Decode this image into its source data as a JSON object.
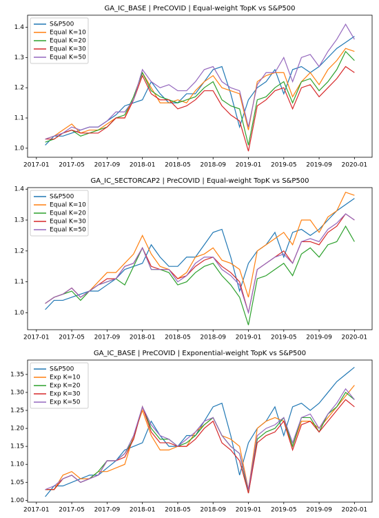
{
  "chart_data": [
    {
      "type": "line",
      "title": "GA_IC_BASE | PreCOVID | Equal-weight TopK vs S&P500",
      "x": [
        "2017-02",
        "2017-03",
        "2017-04",
        "2017-05",
        "2017-06",
        "2017-07",
        "2017-08",
        "2017-09",
        "2017-10",
        "2017-11",
        "2017-12",
        "2018-01",
        "2018-02",
        "2018-03",
        "2018-04",
        "2018-05",
        "2018-06",
        "2018-07",
        "2018-08",
        "2018-09",
        "2018-10",
        "2018-11",
        "2018-12",
        "2019-01",
        "2019-02",
        "2019-03",
        "2019-04",
        "2019-05",
        "2019-06",
        "2019-07",
        "2019-08",
        "2019-09",
        "2019-10",
        "2019-11",
        "2019-12",
        "2020-01"
      ],
      "xlim": [
        "2016-12",
        "2020-03"
      ],
      "xticks": [
        "2017-01",
        "2017-05",
        "2017-09",
        "2018-01",
        "2018-05",
        "2018-09",
        "2019-01",
        "2019-05",
        "2019-09",
        "2020-01"
      ],
      "ylim": [
        0.97,
        1.44
      ],
      "yticks": [
        {
          "value": 1,
          "label": "1.0"
        },
        1.1,
        1.2,
        1.3,
        1.4
      ],
      "legend": "upper left",
      "series": [
        {
          "name": "S&P500",
          "color": "#1f77b4",
          "values": [
            1.01,
            1.04,
            1.04,
            1.05,
            1.06,
            1.07,
            1.07,
            1.09,
            1.11,
            1.14,
            1.15,
            1.16,
            1.22,
            1.18,
            1.15,
            1.15,
            1.18,
            1.18,
            1.22,
            1.26,
            1.27,
            1.18,
            1.07,
            1.16,
            1.2,
            1.22,
            1.26,
            1.18,
            1.26,
            1.27,
            1.25,
            1.27,
            1.3,
            1.33,
            1.35,
            1.37
          ]
        },
        {
          "name": "Equal K=10",
          "color": "#ff7f0e",
          "values": [
            1.03,
            1.04,
            1.06,
            1.08,
            1.05,
            1.06,
            1.06,
            1.08,
            1.1,
            1.1,
            1.17,
            1.25,
            1.2,
            1.15,
            1.15,
            1.16,
            1.15,
            1.19,
            1.22,
            1.24,
            1.2,
            1.19,
            1.18,
            1.06,
            1.22,
            1.24,
            1.25,
            1.25,
            1.17,
            1.22,
            1.25,
            1.21,
            1.26,
            1.29,
            1.33,
            1.32
          ]
        },
        {
          "name": "Equal K=20",
          "color": "#2ca02c",
          "values": [
            1.02,
            1.03,
            1.05,
            1.06,
            1.04,
            1.05,
            1.06,
            1.07,
            1.1,
            1.11,
            1.17,
            1.25,
            1.19,
            1.17,
            1.16,
            1.15,
            1.16,
            1.17,
            1.2,
            1.22,
            1.16,
            1.14,
            1.13,
            1.01,
            1.16,
            1.17,
            1.2,
            1.22,
            1.15,
            1.22,
            1.23,
            1.19,
            1.22,
            1.26,
            1.32,
            1.29
          ]
        },
        {
          "name": "Equal K=30",
          "color": "#d62728",
          "values": [
            1.03,
            1.03,
            1.05,
            1.06,
            1.05,
            1.05,
            1.05,
            1.07,
            1.1,
            1.1,
            1.16,
            1.24,
            1.18,
            1.16,
            1.16,
            1.13,
            1.14,
            1.16,
            1.19,
            1.19,
            1.14,
            1.11,
            1.09,
            0.99,
            1.14,
            1.16,
            1.19,
            1.2,
            1.13,
            1.2,
            1.21,
            1.17,
            1.2,
            1.23,
            1.27,
            1.25
          ]
        },
        {
          "name": "Equal K=50",
          "color": "#9467bd",
          "values": [
            1.03,
            1.04,
            1.05,
            1.07,
            1.06,
            1.07,
            1.07,
            1.09,
            1.12,
            1.12,
            1.16,
            1.26,
            1.22,
            1.2,
            1.21,
            1.19,
            1.19,
            1.22,
            1.26,
            1.27,
            1.22,
            1.2,
            1.19,
            1.07,
            1.21,
            1.25,
            1.25,
            1.3,
            1.22,
            1.3,
            1.31,
            1.27,
            1.32,
            1.36,
            1.41,
            1.36
          ]
        }
      ]
    },
    {
      "type": "line",
      "title": "GA_IC_SECTORCAP2 | PreCOVID | Equal-weight TopK vs S&P500",
      "x": [
        "2017-02",
        "2017-03",
        "2017-04",
        "2017-05",
        "2017-06",
        "2017-07",
        "2017-08",
        "2017-09",
        "2017-10",
        "2017-11",
        "2017-12",
        "2018-01",
        "2018-02",
        "2018-03",
        "2018-04",
        "2018-05",
        "2018-06",
        "2018-07",
        "2018-08",
        "2018-09",
        "2018-10",
        "2018-11",
        "2018-12",
        "2019-01",
        "2019-02",
        "2019-03",
        "2019-04",
        "2019-05",
        "2019-06",
        "2019-07",
        "2019-08",
        "2019-09",
        "2019-10",
        "2019-11",
        "2019-12",
        "2020-01"
      ],
      "xlim": [
        "2016-12",
        "2020-03"
      ],
      "xticks": [
        "2017-01",
        "2017-05",
        "2017-09",
        "2018-01",
        "2018-05",
        "2018-09",
        "2019-01",
        "2019-05",
        "2019-09",
        "2020-01"
      ],
      "ylim": [
        0.945,
        1.405
      ],
      "yticks": [
        {
          "value": 1,
          "label": "1.0"
        },
        1.1,
        1.2,
        1.3,
        1.4
      ],
      "legend": "upper left",
      "series": [
        {
          "name": "S&P500",
          "color": "#1f77b4",
          "values": [
            1.01,
            1.04,
            1.04,
            1.05,
            1.06,
            1.07,
            1.07,
            1.09,
            1.11,
            1.14,
            1.15,
            1.16,
            1.22,
            1.18,
            1.15,
            1.15,
            1.18,
            1.18,
            1.22,
            1.26,
            1.27,
            1.18,
            1.07,
            1.16,
            1.2,
            1.22,
            1.26,
            1.18,
            1.26,
            1.27,
            1.25,
            1.27,
            1.3,
            1.33,
            1.35,
            1.37
          ]
        },
        {
          "name": "Equal K=10",
          "color": "#ff7f0e",
          "values": [
            1.03,
            1.05,
            1.06,
            1.08,
            1.05,
            1.07,
            1.1,
            1.13,
            1.13,
            1.16,
            1.19,
            1.25,
            1.19,
            1.15,
            1.14,
            1.11,
            1.13,
            1.18,
            1.19,
            1.21,
            1.17,
            1.16,
            1.14,
            1.05,
            1.2,
            1.22,
            1.24,
            1.26,
            1.22,
            1.3,
            1.3,
            1.26,
            1.31,
            1.33,
            1.39,
            1.38
          ]
        },
        {
          "name": "Equal K=20",
          "color": "#2ca02c",
          "values": [
            1.03,
            1.05,
            1.06,
            1.07,
            1.04,
            1.07,
            1.09,
            1.1,
            1.11,
            1.09,
            1.15,
            1.21,
            1.14,
            1.14,
            1.13,
            1.09,
            1.1,
            1.13,
            1.15,
            1.16,
            1.12,
            1.09,
            1.05,
            0.96,
            1.11,
            1.12,
            1.14,
            1.16,
            1.12,
            1.19,
            1.21,
            1.18,
            1.22,
            1.23,
            1.28,
            1.23
          ]
        },
        {
          "name": "Equal K=30",
          "color": "#d62728",
          "values": [
            1.03,
            1.05,
            1.06,
            1.08,
            1.05,
            1.07,
            1.09,
            1.11,
            1.11,
            1.15,
            1.16,
            1.21,
            1.15,
            1.14,
            1.14,
            1.11,
            1.12,
            1.15,
            1.17,
            1.18,
            1.15,
            1.13,
            1.1,
            1.0,
            1.14,
            1.16,
            1.18,
            1.2,
            1.16,
            1.23,
            1.23,
            1.22,
            1.26,
            1.28,
            1.32,
            1.3
          ]
        },
        {
          "name": "Equal K=50",
          "color": "#9467bd",
          "values": [
            1.03,
            1.05,
            1.06,
            1.08,
            1.05,
            1.07,
            1.09,
            1.1,
            1.11,
            1.15,
            1.16,
            1.21,
            1.14,
            1.14,
            1.14,
            1.1,
            1.12,
            1.16,
            1.18,
            1.18,
            1.14,
            1.12,
            1.09,
            1.0,
            1.14,
            1.16,
            1.18,
            1.19,
            1.16,
            1.23,
            1.24,
            1.23,
            1.27,
            1.29,
            1.32,
            1.3
          ]
        }
      ]
    },
    {
      "type": "line",
      "title": "GA_IC_BASE | PreCOVID | Exponential-weight TopK vs S&P500",
      "x": [
        "2017-02",
        "2017-03",
        "2017-04",
        "2017-05",
        "2017-06",
        "2017-07",
        "2017-08",
        "2017-09",
        "2017-10",
        "2017-11",
        "2017-12",
        "2018-01",
        "2018-02",
        "2018-03",
        "2018-04",
        "2018-05",
        "2018-06",
        "2018-07",
        "2018-08",
        "2018-09",
        "2018-10",
        "2018-11",
        "2018-12",
        "2019-01",
        "2019-02",
        "2019-03",
        "2019-04",
        "2019-05",
        "2019-06",
        "2019-07",
        "2019-08",
        "2019-09",
        "2019-10",
        "2019-11",
        "2019-12",
        "2020-01"
      ],
      "xlim": [
        "2016-12",
        "2020-03"
      ],
      "xticks": [
        "2017-01",
        "2017-05",
        "2017-09",
        "2018-01",
        "2018-05",
        "2018-09",
        "2019-01",
        "2019-05",
        "2019-09",
        "2020-01"
      ],
      "ylim": [
        0.995,
        1.39
      ],
      "yticks": [
        {
          "value": 1,
          "label": "1.00"
        },
        1.05,
        {
          "value": 1.1,
          "label": "1.10"
        },
        1.15,
        {
          "value": 1.2,
          "label": "1.20"
        },
        1.25,
        {
          "value": 1.3,
          "label": "1.30"
        },
        1.35
      ],
      "legend": "upper left",
      "series": [
        {
          "name": "S&P500",
          "color": "#1f77b4",
          "values": [
            1.01,
            1.04,
            1.04,
            1.05,
            1.06,
            1.07,
            1.07,
            1.09,
            1.11,
            1.14,
            1.15,
            1.16,
            1.22,
            1.18,
            1.15,
            1.15,
            1.18,
            1.18,
            1.22,
            1.26,
            1.27,
            1.18,
            1.07,
            1.16,
            1.2,
            1.22,
            1.26,
            1.18,
            1.26,
            1.27,
            1.25,
            1.27,
            1.3,
            1.33,
            1.35,
            1.37
          ]
        },
        {
          "name": "Exp K=10",
          "color": "#ff7f0e",
          "values": [
            1.03,
            1.03,
            1.07,
            1.08,
            1.06,
            1.06,
            1.08,
            1.08,
            1.09,
            1.1,
            1.18,
            1.25,
            1.18,
            1.14,
            1.14,
            1.15,
            1.15,
            1.19,
            1.21,
            1.23,
            1.18,
            1.17,
            1.15,
            1.03,
            1.2,
            1.22,
            1.23,
            1.22,
            1.15,
            1.22,
            1.22,
            1.2,
            1.23,
            1.26,
            1.29,
            1.32
          ]
        },
        {
          "name": "Exp K=20",
          "color": "#2ca02c",
          "values": [
            1.03,
            1.03,
            1.06,
            1.07,
            1.05,
            1.06,
            1.08,
            1.11,
            1.11,
            1.13,
            1.17,
            1.26,
            1.2,
            1.17,
            1.17,
            1.15,
            1.16,
            1.18,
            1.21,
            1.23,
            1.18,
            1.15,
            1.13,
            1.02,
            1.17,
            1.19,
            1.2,
            1.23,
            1.15,
            1.23,
            1.23,
            1.19,
            1.24,
            1.26,
            1.3,
            1.28
          ]
        },
        {
          "name": "Exp K=30",
          "color": "#d62728",
          "values": [
            1.03,
            1.03,
            1.06,
            1.07,
            1.05,
            1.06,
            1.07,
            1.11,
            1.11,
            1.12,
            1.17,
            1.26,
            1.19,
            1.16,
            1.16,
            1.15,
            1.15,
            1.17,
            1.2,
            1.22,
            1.16,
            1.14,
            1.11,
            1.02,
            1.16,
            1.18,
            1.19,
            1.22,
            1.14,
            1.21,
            1.22,
            1.19,
            1.22,
            1.25,
            1.28,
            1.26
          ]
        },
        {
          "name": "Exp K=50",
          "color": "#9467bd",
          "values": [
            1.03,
            1.04,
            1.06,
            1.07,
            1.05,
            1.06,
            1.07,
            1.11,
            1.11,
            1.13,
            1.18,
            1.26,
            1.21,
            1.18,
            1.17,
            1.15,
            1.17,
            1.19,
            1.22,
            1.23,
            1.18,
            1.15,
            1.13,
            1.03,
            1.18,
            1.2,
            1.21,
            1.23,
            1.16,
            1.23,
            1.24,
            1.2,
            1.24,
            1.27,
            1.31,
            1.28
          ]
        }
      ]
    }
  ]
}
